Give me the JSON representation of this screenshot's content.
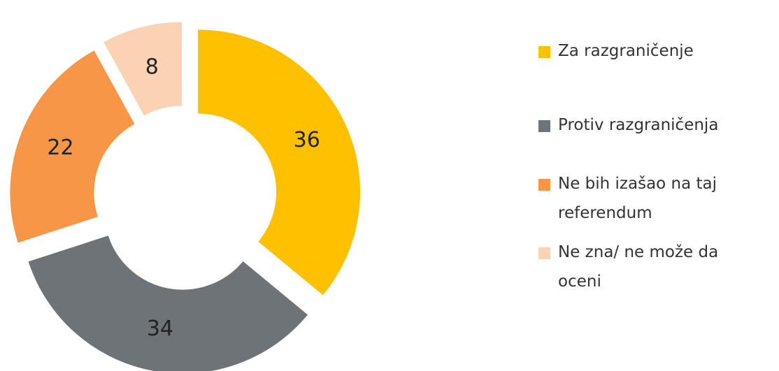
{
  "chart_data": {
    "type": "donut",
    "categories": [
      "Za razgraničenje",
      "Protiv razgraničenja",
      "Ne bih izašao na taj referendum",
      "Ne zna/ ne može da oceni"
    ],
    "values": [
      36,
      34,
      22,
      8
    ],
    "colors": [
      "#FFC000",
      "#6E7378",
      "#F79646",
      "#FAD3B4"
    ],
    "legend": "right"
  }
}
